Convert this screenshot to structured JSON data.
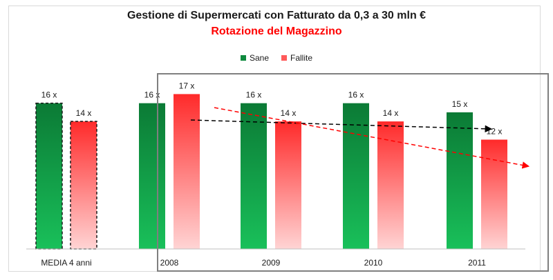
{
  "chart_data": {
    "type": "bar",
    "title": "Gestione di Supermercati con Fatturato da 0,3 a 30 mln €",
    "subtitle": "Rotazione del Magazzino",
    "categories": [
      "MEDIA 4 anni",
      "2008",
      "2009",
      "2010",
      "2011"
    ],
    "series": [
      {
        "name": "Sane",
        "values": [
          16,
          16,
          16,
          16,
          15
        ],
        "labels": [
          "16 x",
          "16 x",
          "16 x",
          "16 x",
          "15 x"
        ],
        "color": "#0e8a3e"
      },
      {
        "name": "Fallite",
        "values": [
          14,
          17,
          14,
          14,
          12
        ],
        "labels": [
          "14 x",
          "17 x",
          "14 x",
          "14 x",
          "12 x"
        ],
        "color": "#ff3b3b"
      }
    ],
    "ylim": [
      0,
      19
    ],
    "grid": false,
    "legend": "top-center",
    "annotations": [
      "black dashed trend arrow over Sane",
      "red dashed trend arrow over Fallite"
    ]
  },
  "colors": {
    "sane": "#0e8a3e",
    "fallite": "#ff3b3b",
    "trend_black": "#000000",
    "trend_red": "#ff0000"
  }
}
